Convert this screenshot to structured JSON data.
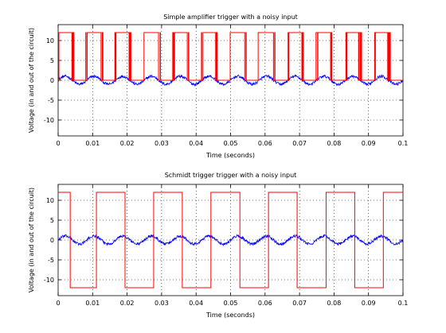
{
  "chart_data": [
    {
      "type": "line",
      "title": "Simple amplifier trigger with a noisy input",
      "xlabel": "Time (seconds)",
      "ylabel": "Voltage (in and out of the circuit)",
      "xlim": [
        0,
        0.1
      ],
      "ylim": [
        -14,
        14
      ],
      "xticks": [
        0,
        0.01,
        0.02,
        0.03,
        0.04,
        0.05,
        0.06,
        0.07,
        0.08,
        0.09,
        0.1
      ],
      "yticks": [
        -10,
        -5,
        0,
        5,
        10
      ],
      "grid": true,
      "series": [
        {
          "role": "input",
          "color": "#0000ff",
          "signal": "sine plus noise",
          "amplitude": 1,
          "frequency_hz": 120,
          "noise_amplitude": 0.35
        },
        {
          "role": "output",
          "color": "#ff0000",
          "signal": "comparator output",
          "levels": [
            0,
            12
          ],
          "threshold": 0
        }
      ]
    },
    {
      "type": "line",
      "title": "Schmidt trigger trigger with a noisy input",
      "xlabel": "Time (seconds)",
      "ylabel": "Voltage (in and out of the circuit)",
      "xlim": [
        0,
        0.1
      ],
      "ylim": [
        -14,
        14
      ],
      "xticks": [
        0,
        0.01,
        0.02,
        0.03,
        0.04,
        0.05,
        0.06,
        0.07,
        0.08,
        0.09,
        0.1
      ],
      "yticks": [
        -10,
        -5,
        0,
        5,
        10
      ],
      "grid": true,
      "series": [
        {
          "role": "input",
          "color": "#0000ff",
          "signal": "sine plus noise",
          "amplitude": 1,
          "frequency_hz": 120,
          "noise_amplitude": 0.35
        },
        {
          "role": "output",
          "color": "#ff0000",
          "signal": "square wave",
          "levels": [
            -12,
            12
          ],
          "start_level": 12,
          "transitions": [
            0.0035,
            0.0111,
            0.0194,
            0.0277,
            0.036,
            0.0443,
            0.0527,
            0.061,
            0.0693,
            0.0777,
            0.086,
            0.0943
          ]
        }
      ]
    }
  ]
}
